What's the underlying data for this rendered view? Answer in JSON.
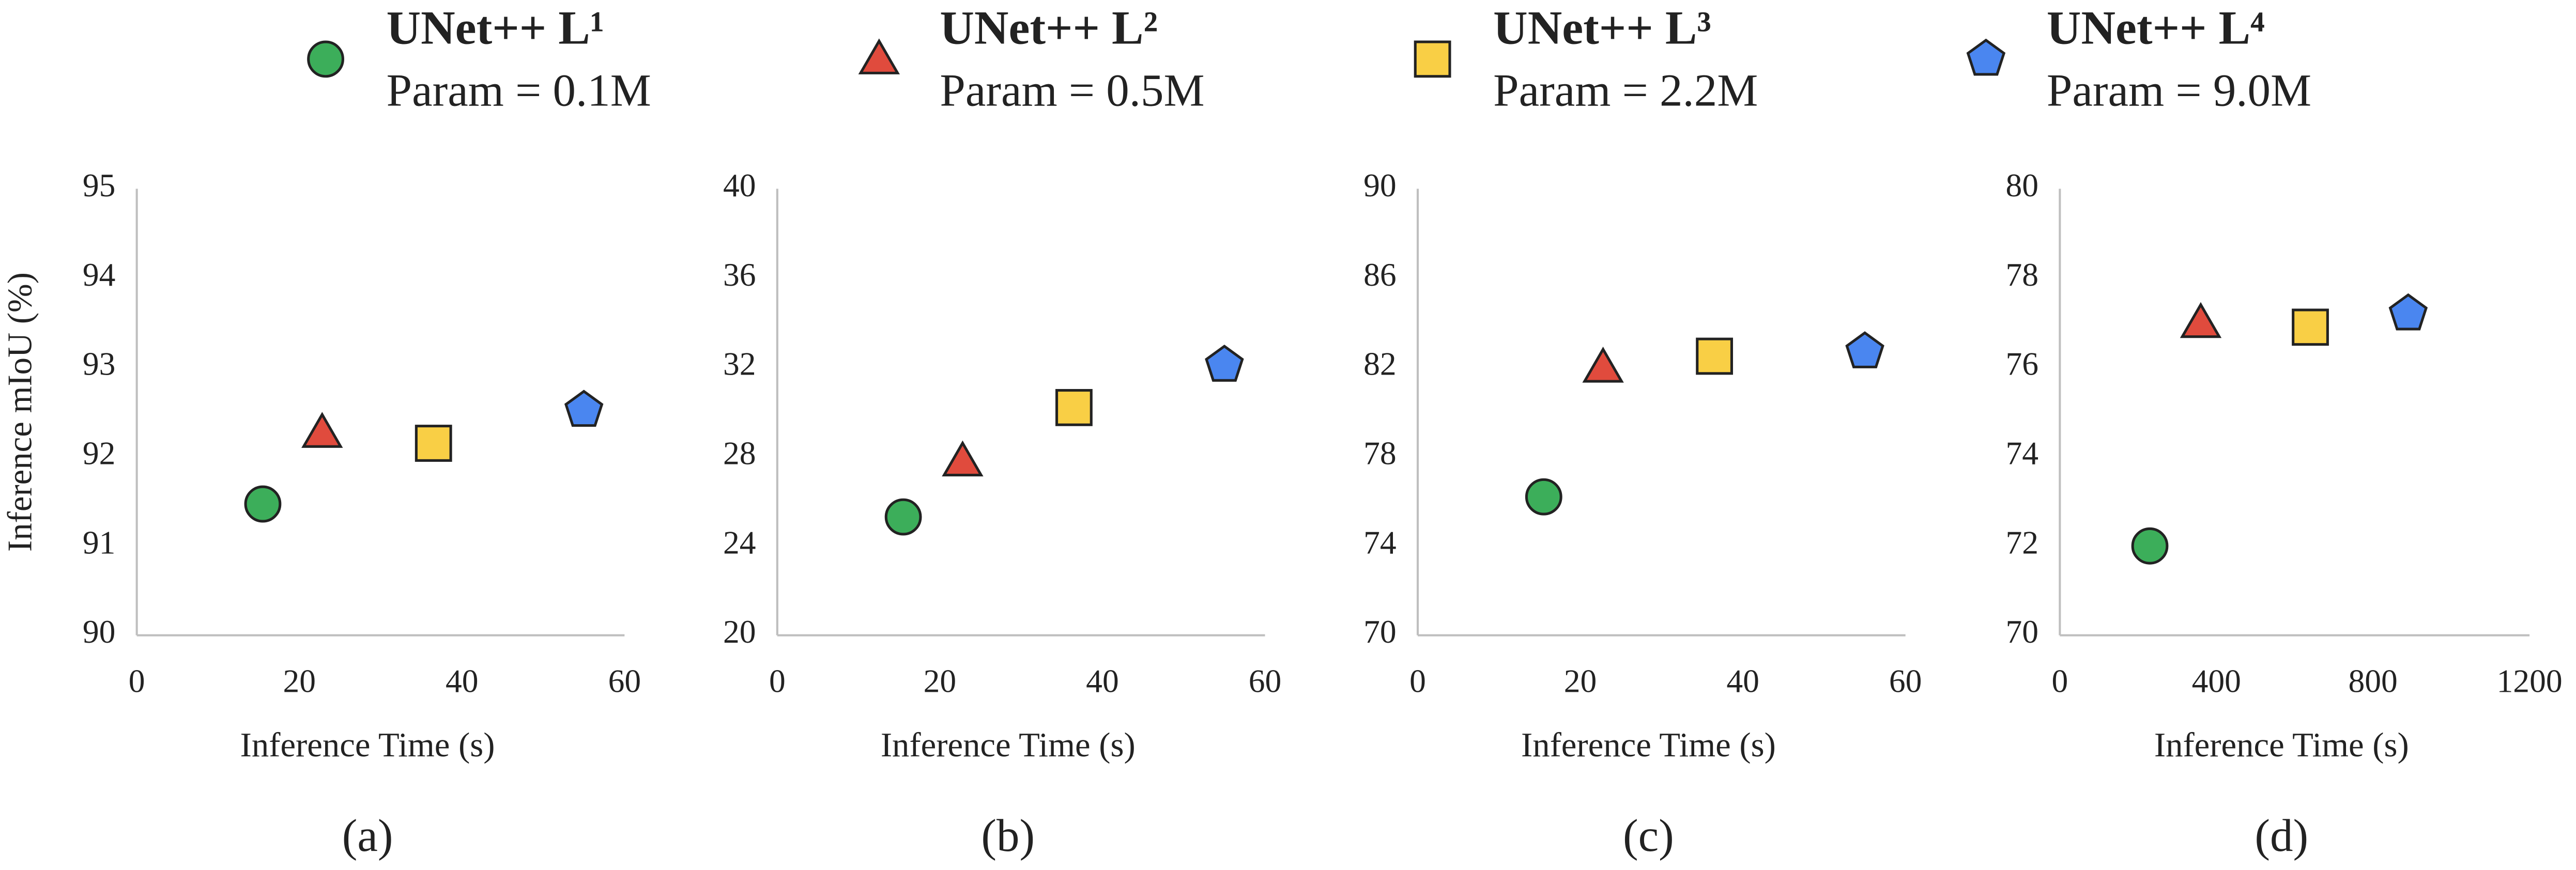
{
  "legend": {
    "entries": [
      {
        "name": "UNet++ L¹",
        "note": "Param = 0.1M",
        "color": "#3cae5a",
        "marker": "circle"
      },
      {
        "name": "UNet++ L²",
        "note": "Param = 0.5M",
        "color": "#e04b3d",
        "marker": "triangle"
      },
      {
        "name": "UNet++ L³",
        "note": "Param = 2.2M",
        "color": "#f9cf45",
        "marker": "square"
      },
      {
        "name": "UNet++ L⁴",
        "note": "Param = 9.0M",
        "color": "#4a86f0",
        "marker": "pentagon"
      }
    ]
  },
  "chart_data": [
    {
      "type": "scatter",
      "caption": "(a)",
      "xlabel": "Inference Time (s)",
      "ylabel": "Inference mIoU (%)",
      "xlim": [
        0,
        60
      ],
      "xticks": [
        0,
        20,
        40,
        60
      ],
      "ylim": [
        90,
        95
      ],
      "yticks": [
        90,
        91,
        92,
        93,
        94,
        95
      ],
      "series": [
        {
          "x": [
            15.5
          ],
          "values": [
            91.47
          ]
        },
        {
          "x": [
            22.8
          ],
          "values": [
            92.27
          ]
        },
        {
          "x": [
            36.5
          ],
          "values": [
            92.15
          ]
        },
        {
          "x": [
            55
          ],
          "values": [
            92.52
          ]
        }
      ]
    },
    {
      "type": "scatter",
      "caption": "(b)",
      "xlabel": "Inference Time (s)",
      "xlim": [
        0,
        60
      ],
      "xticks": [
        0,
        20,
        40,
        60
      ],
      "ylim": [
        20,
        40
      ],
      "yticks": [
        20,
        24,
        28,
        32,
        36,
        40
      ],
      "series": [
        {
          "x": [
            15.5
          ],
          "values": [
            25.3
          ]
        },
        {
          "x": [
            22.8
          ],
          "values": [
            27.8
          ]
        },
        {
          "x": [
            36.5
          ],
          "values": [
            30.2
          ]
        },
        {
          "x": [
            55
          ],
          "values": [
            32.1
          ]
        }
      ]
    },
    {
      "type": "scatter",
      "caption": "(c)",
      "xlabel": "Inference Time (s)",
      "xlim": [
        0,
        60
      ],
      "xticks": [
        0,
        20,
        40,
        60
      ],
      "ylim": [
        70,
        90
      ],
      "yticks": [
        70,
        74,
        78,
        82,
        86,
        90
      ],
      "series": [
        {
          "x": [
            15.5
          ],
          "values": [
            76.2
          ]
        },
        {
          "x": [
            22.8
          ],
          "values": [
            82.0
          ]
        },
        {
          "x": [
            36.5
          ],
          "values": [
            82.5
          ]
        },
        {
          "x": [
            55
          ],
          "values": [
            82.7
          ]
        }
      ]
    },
    {
      "type": "scatter",
      "caption": "(d)",
      "xlabel": "Inference Time (s)",
      "xlim": [
        0,
        1200
      ],
      "xticks": [
        0,
        400,
        800,
        1200
      ],
      "ylim": [
        70,
        80
      ],
      "yticks": [
        70,
        72,
        74,
        76,
        78,
        80
      ],
      "series": [
        {
          "x": [
            230
          ],
          "values": [
            72.0
          ]
        },
        {
          "x": [
            360
          ],
          "values": [
            77.0
          ]
        },
        {
          "x": [
            640
          ],
          "values": [
            76.9
          ]
        },
        {
          "x": [
            890
          ],
          "values": [
            77.2
          ]
        }
      ]
    }
  ]
}
